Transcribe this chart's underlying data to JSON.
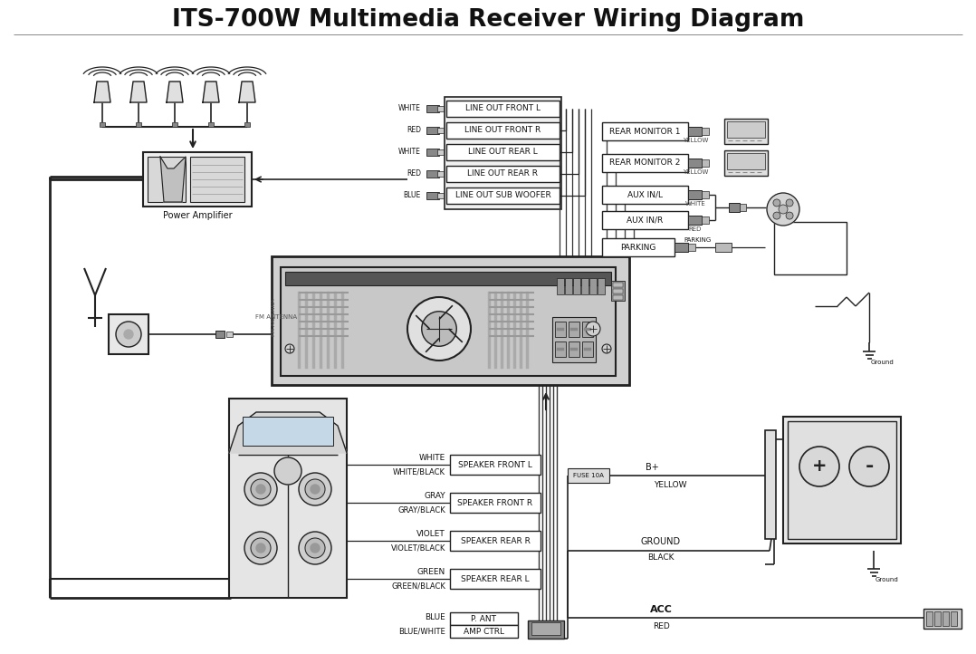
{
  "title": "ITS-700W Multimedia Receiver Wiring Diagram",
  "title_fontsize": 19,
  "title_fontweight": "bold",
  "bg_color": "#ffffff",
  "line_color": "#222222",
  "box_color": "#ffffff",
  "box_edge": "#222222",
  "text_color": "#111111",
  "line_out_labels": [
    "LINE OUT FRONT L",
    "LINE OUT FRONT R",
    "LINE OUT REAR L",
    "LINE OUT REAR R",
    "LINE OUT SUB WOOFER"
  ],
  "line_out_wire_colors": [
    "WHITE",
    "RED",
    "WHITE",
    "RED",
    "BLUE"
  ],
  "right_labels": [
    "REAR MONITOR 1",
    "REAR MONITOR 2",
    "AUX IN/L",
    "AUX IN/R",
    "PARKING"
  ],
  "right_wire_colors": [
    "YELLOW",
    "YELLOW",
    "WHITE",
    "RED",
    ""
  ],
  "speaker_labels": [
    "SPEAKER FRONT L",
    "SPEAKER FRONT R",
    "SPEAKER REAR R",
    "SPEAKER REAR L"
  ],
  "speaker_wire_colors": [
    "WHITE",
    "GRAY",
    "VIOLET",
    "GREEN"
  ],
  "speaker_neg_colors": [
    "WHITE/BLACK",
    "GRAY/BLACK",
    "VIOLET/BLACK",
    "GREEN/BLACK"
  ],
  "bottom_wire_colors": [
    "BLUE",
    "BLUE/WHITE"
  ],
  "bottom_labels": [
    "P. ANT",
    "AMP CTRL"
  ],
  "power_labels": [
    "B+",
    "GROUND",
    "ACC"
  ],
  "power_wire_colors": [
    "YELLOW",
    "BLACK",
    "RED"
  ],
  "fuse_label": "FUSE 10A",
  "power_amp_label": "Power Amplifier",
  "ground_label": "Ground"
}
